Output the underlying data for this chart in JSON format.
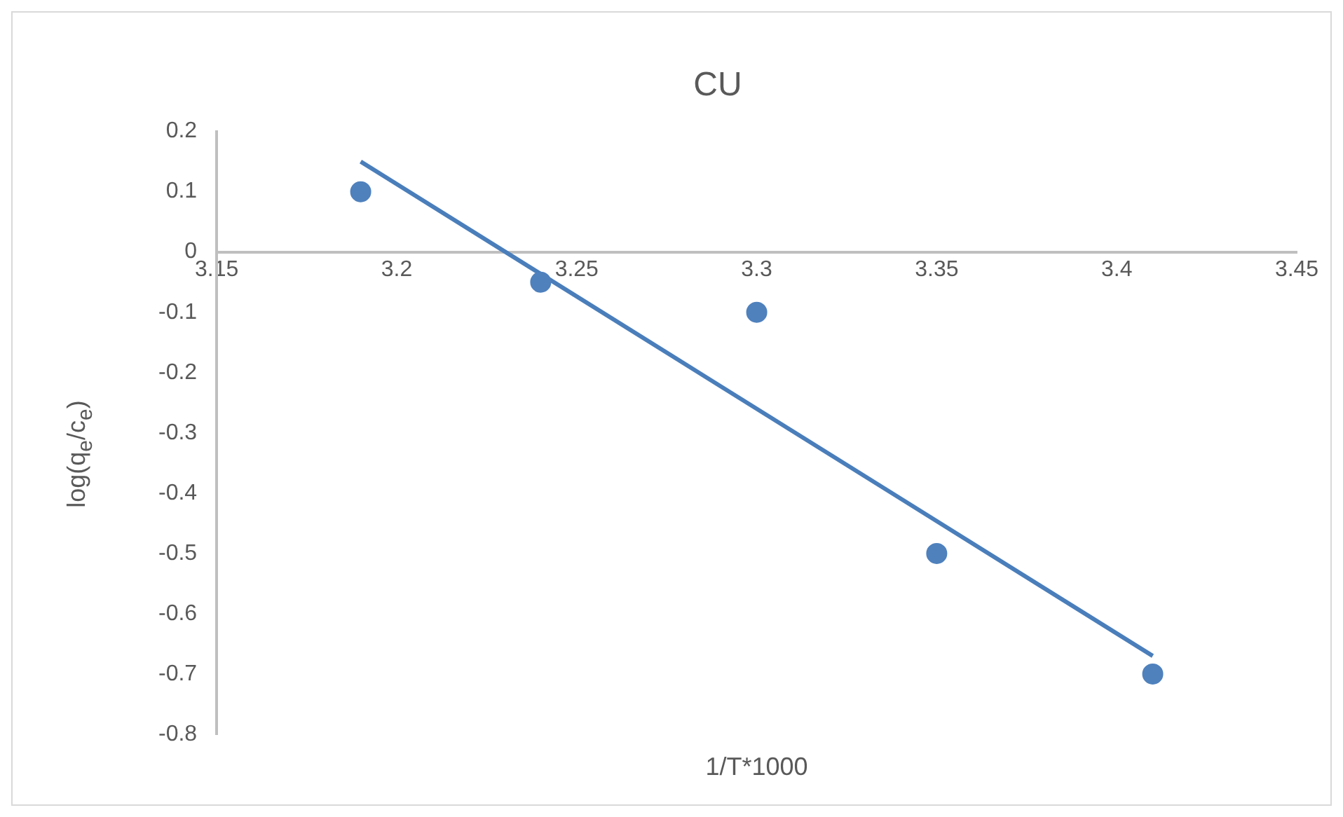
{
  "chart_data": {
    "type": "scatter",
    "title": "CU",
    "xlabel": "1/T*1000",
    "ylabel": "log(q$_{e}$/c$_{e}$)",
    "xlim": [
      3.15,
      3.45
    ],
    "xticks": [
      3.15,
      3.2,
      3.25,
      3.3,
      3.35,
      3.4,
      3.45
    ],
    "ylim": [
      -0.8,
      0.2
    ],
    "yticks": [
      -0.8,
      -0.7,
      -0.6,
      -0.5,
      -0.4,
      -0.3,
      -0.2,
      -0.1,
      0,
      0.1,
      0.2
    ],
    "grid": false,
    "legend": false,
    "series": [
      {
        "marker": "circle",
        "color": "#4f81bd",
        "x": [
          3.19,
          3.24,
          3.3,
          3.35,
          3.41
        ],
        "values": [
          0.1,
          -0.05,
          -0.1,
          -0.5,
          -0.7
        ]
      },
      {
        "type": "line",
        "marker": "none",
        "color": "#4a7ebb",
        "line_style": "solid",
        "x": [
          3.19,
          3.41
        ],
        "values": [
          0.15,
          -0.67
        ]
      }
    ]
  }
}
